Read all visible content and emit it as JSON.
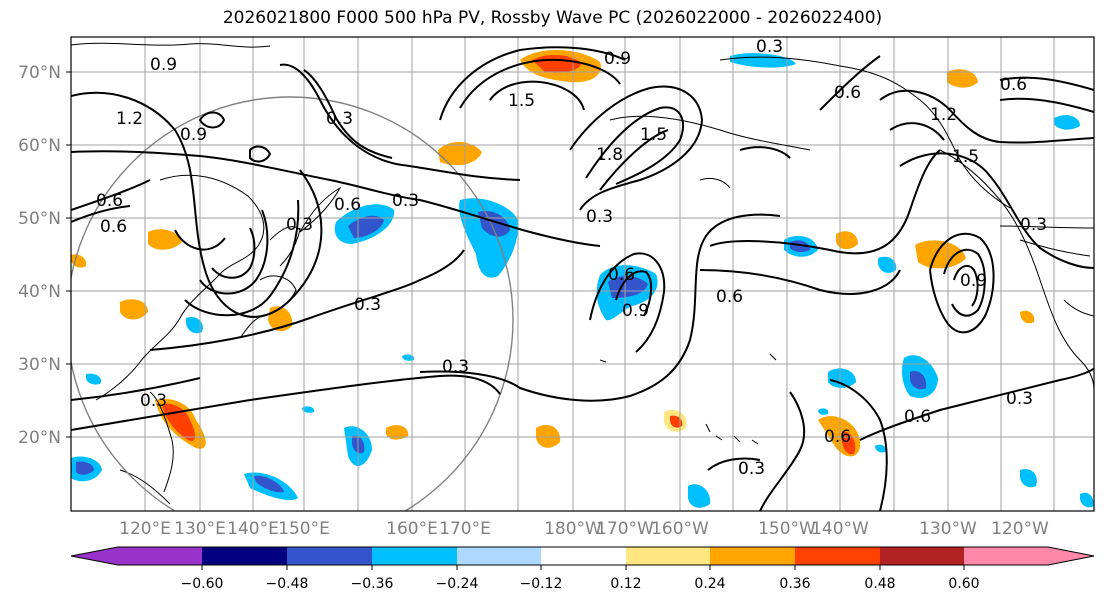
{
  "title": "2026021800 F000 500 hPa PV, Rossby Wave PC (2026022000 - 2026022400)",
  "lat_labels": [
    "70°N",
    "60°N",
    "50°N",
    "40°N",
    "30°N",
    "20°N"
  ],
  "lon_labels": [
    "120°E",
    "130°E",
    "140°E",
    "150°E",
    "160°E",
    "170°E",
    "180°W",
    "170°W",
    "160°W",
    "150°W",
    "140°W",
    "130°W",
    "120°W"
  ],
  "contour_labels": [
    "0.9",
    "0.3",
    "0.9",
    "0.6",
    "0.6",
    "1.2",
    "0.9",
    "1.5",
    "1.8",
    "1.5",
    "0.3",
    "0.6",
    "0.3",
    "0.3",
    "0.3",
    "0.6",
    "0.3",
    "0.6",
    "0.9",
    "0.6",
    "0.3",
    "0.3",
    "0.6",
    "0.6",
    "0.3",
    "0.9",
    "1.2",
    "1.5",
    "0.3",
    "0.3",
    "0.6"
  ],
  "colorbar": {
    "tick_labels": [
      "−0.60",
      "−0.48",
      "−0.36",
      "−0.24",
      "−0.12",
      "0.12",
      "0.24",
      "0.36",
      "0.48",
      "0.60"
    ],
    "colors": [
      "#9933cc",
      "#000080",
      "#3355cc",
      "#00bfff",
      "#add8ff",
      "#ffffff",
      "#ffe680",
      "#ffa500",
      "#ff4000",
      "#b22222",
      "#ff88aa"
    ]
  }
}
